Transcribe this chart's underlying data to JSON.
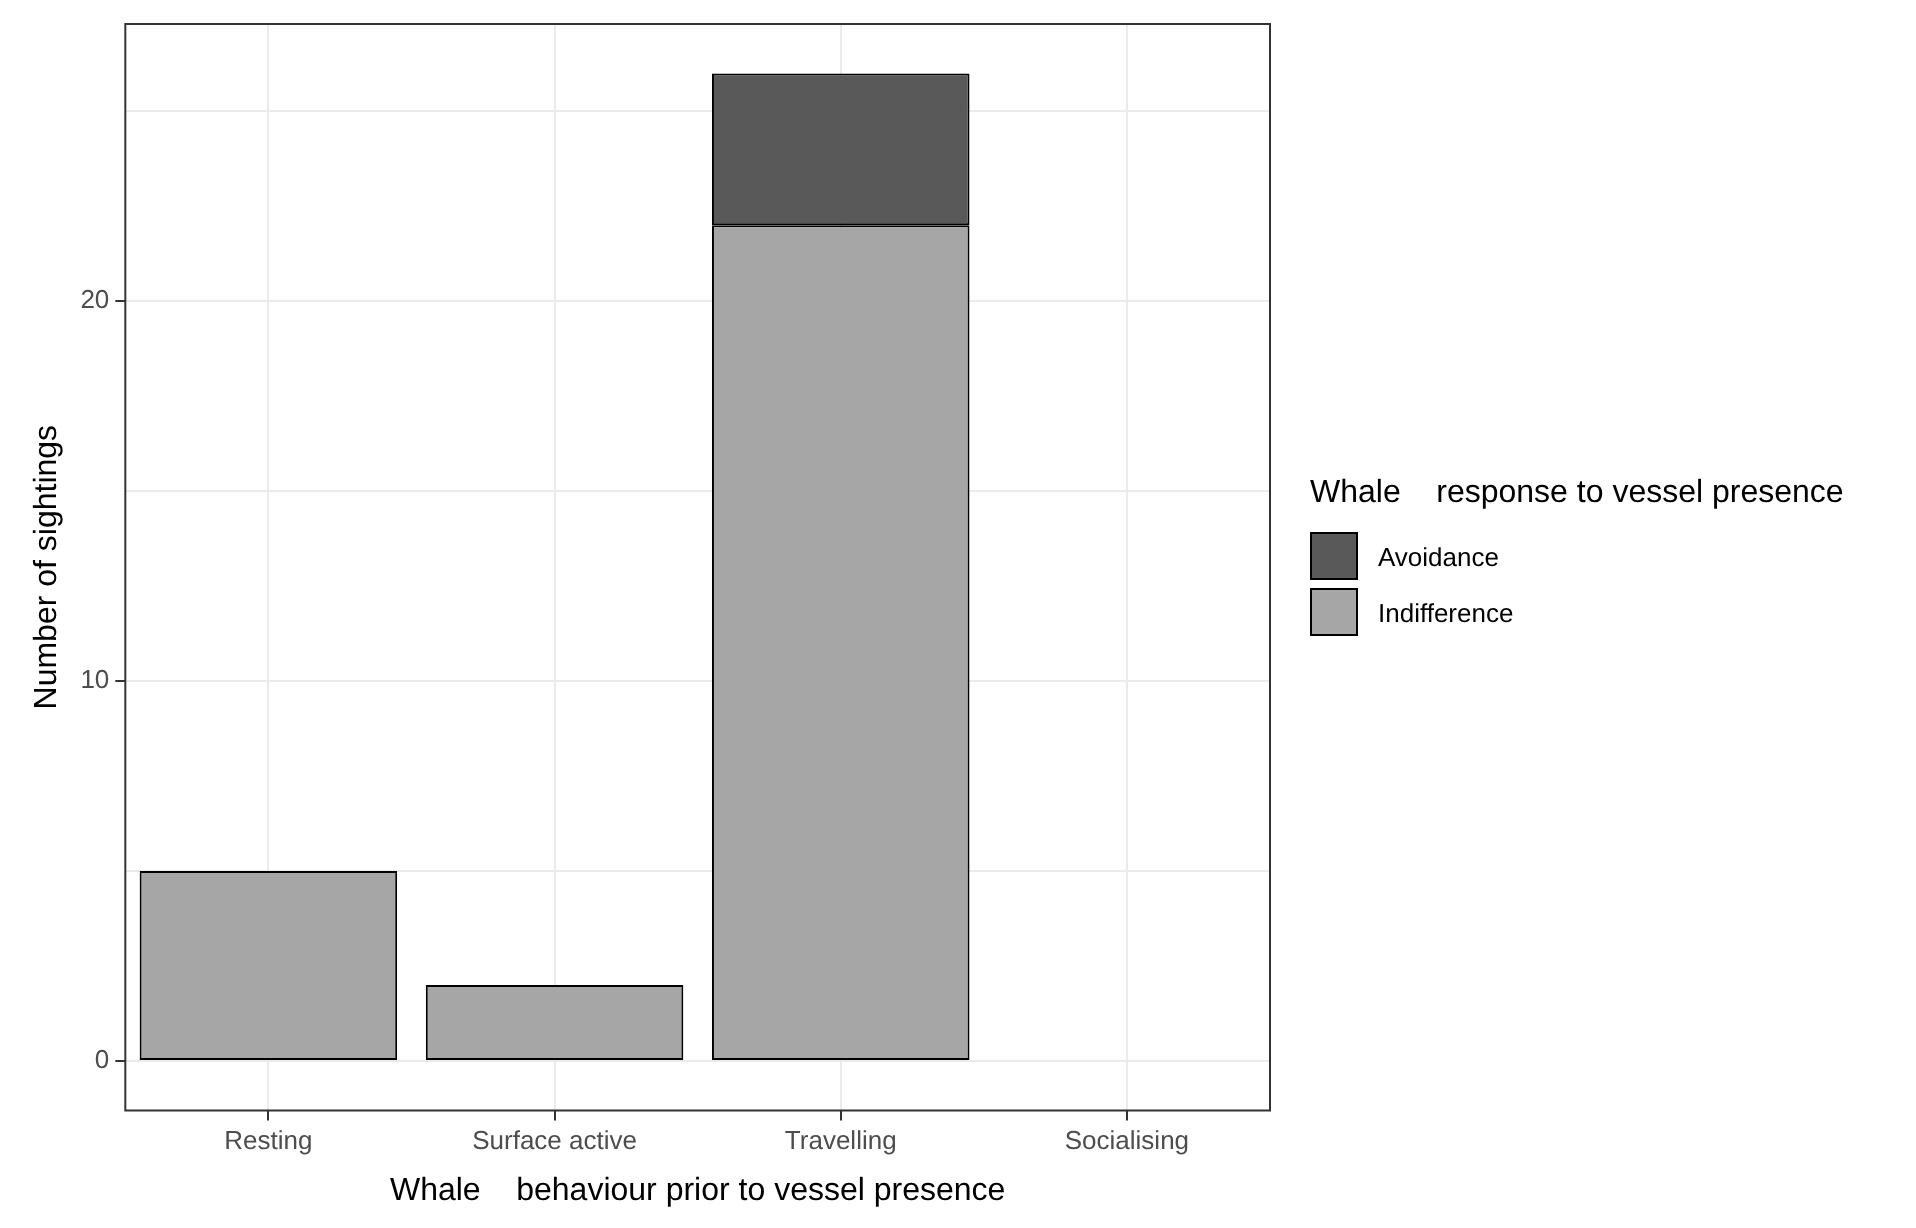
{
  "chart_data": {
    "type": "bar",
    "stacked": true,
    "xlabel": "Whale    behaviour prior to vessel presence",
    "ylabel": "Number of sightings",
    "legend_title": "Whale    response to vessel presence",
    "categories": [
      "Resting",
      "Surface active",
      "Travelling",
      "Socialising"
    ],
    "series": [
      {
        "name": "Indifference",
        "color": "#a6a6a6",
        "values": [
          5,
          2,
          22,
          0
        ]
      },
      {
        "name": "Avoidance",
        "color": "#595959",
        "values": [
          0,
          0,
          4,
          0
        ]
      }
    ],
    "ylim": [
      -1.3,
      27.3
    ],
    "yticks": [
      0,
      {
        "value": 5,
        "label": null
      },
      10,
      {
        "value": 15,
        "label": null
      },
      20,
      {
        "value": 25,
        "label": null
      }
    ],
    "grid": true,
    "legend": "right"
  }
}
